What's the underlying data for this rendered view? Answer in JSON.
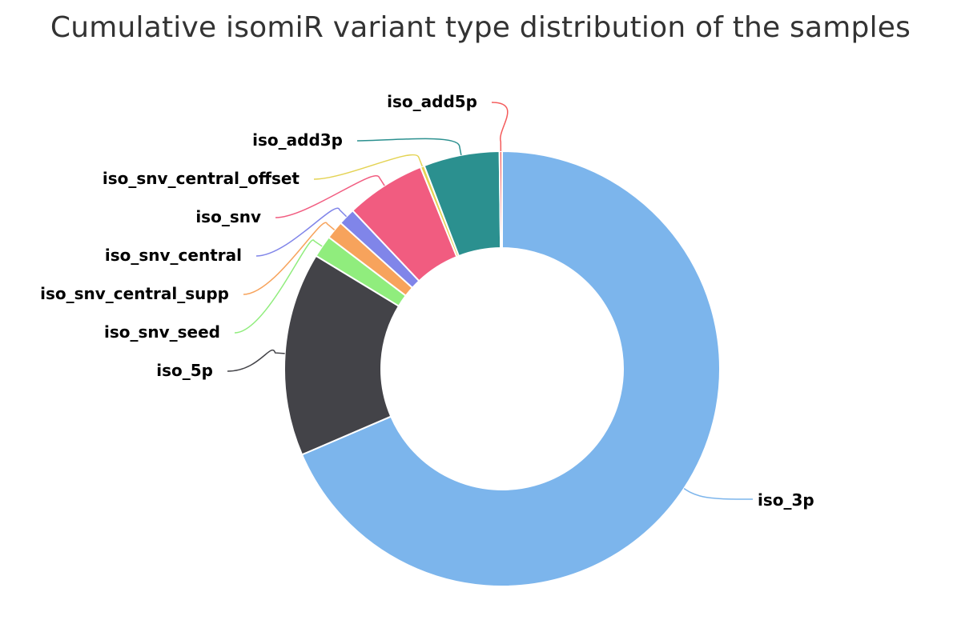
{
  "chart_data": {
    "type": "pie",
    "variant": "donut",
    "title": "Cumulative isomiR variant type distribution of the samples",
    "legend": "none",
    "slices": [
      {
        "name": "iso_3p",
        "value": 70.6,
        "color": "#7cb5ec"
      },
      {
        "name": "iso_5p",
        "value": 15.6,
        "color": "#434348"
      },
      {
        "name": "iso_snv_seed",
        "value": 1.7,
        "color": "#90ed7d"
      },
      {
        "name": "iso_snv_central_supp",
        "value": 1.4,
        "color": "#f7a35c"
      },
      {
        "name": "iso_snv_central",
        "value": 1.3,
        "color": "#8085e9"
      },
      {
        "name": "iso_snv",
        "value": 6.1,
        "color": "#f15c80"
      },
      {
        "name": "iso_snv_central_offset",
        "value": 0.3,
        "color": "#e4d354"
      },
      {
        "name": "iso_add3p",
        "value": 5.8,
        "color": "#2b908f"
      },
      {
        "name": "iso_add5p",
        "value": 0.2,
        "color": "#f45b5b"
      }
    ]
  }
}
